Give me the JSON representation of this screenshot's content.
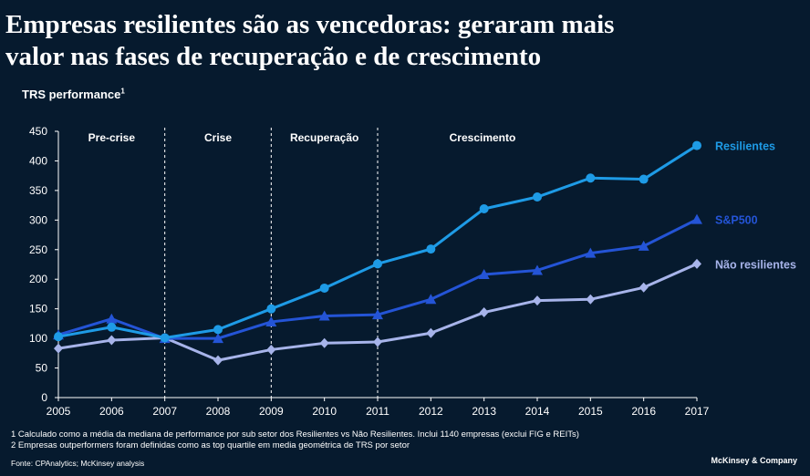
{
  "title_lines": [
    "Empresas resilientes são as vencedoras: geraram mais",
    "valor nas fases de recuperação e de crescimento"
  ],
  "footnotes": [
    "1 Calculado como a média da mediana de performance por sub setor dos Resilientes vs Não Resilientes. Inclui 1140 empresas (exclui FIG e REITs)",
    "2 Empresas outperformers foram definidas como as top quartile em media geométrica de TRS por setor"
  ],
  "source": "Fonte: CPAnalytics; McKinsey analysis",
  "brand": "McKinsey & Company",
  "chart_data": {
    "type": "line",
    "ylabel": "TRS performance",
    "ylabel_sup": "1",
    "x": [
      2005,
      2006,
      2007,
      2008,
      2009,
      2010,
      2011,
      2012,
      2013,
      2014,
      2015,
      2016,
      2017
    ],
    "ylim": [
      0,
      450
    ],
    "yticks": [
      0,
      50,
      100,
      150,
      200,
      250,
      300,
      350,
      400,
      450
    ],
    "phases": [
      {
        "label": "Pre-crise",
        "from": 2005,
        "to": 2007
      },
      {
        "label": "Crise",
        "from": 2007,
        "to": 2009
      },
      {
        "label": "Recuperação",
        "from": 2009,
        "to": 2011
      },
      {
        "label": "Crescimento",
        "from": 2011,
        "to": 2017
      }
    ],
    "dividers": [
      2007,
      2009,
      2011
    ],
    "series": [
      {
        "name": "Resilientes",
        "color": "#1e9be6",
        "marker": "circle",
        "values": [
          103,
          119,
          101,
          115,
          150,
          185,
          226,
          251,
          319,
          339,
          371,
          369,
          426
        ]
      },
      {
        "name": "S&P500",
        "color": "#2454d6",
        "marker": "triangle",
        "values": [
          106,
          133,
          100,
          100,
          128,
          138,
          140,
          166,
          208,
          215,
          244,
          256,
          301
        ]
      },
      {
        "name": "Não resilientes",
        "color": "#a7b4ea",
        "marker": "diamond",
        "values": [
          83,
          97,
          101,
          63,
          81,
          92,
          94,
          109,
          144,
          164,
          166,
          186,
          226
        ]
      }
    ]
  }
}
